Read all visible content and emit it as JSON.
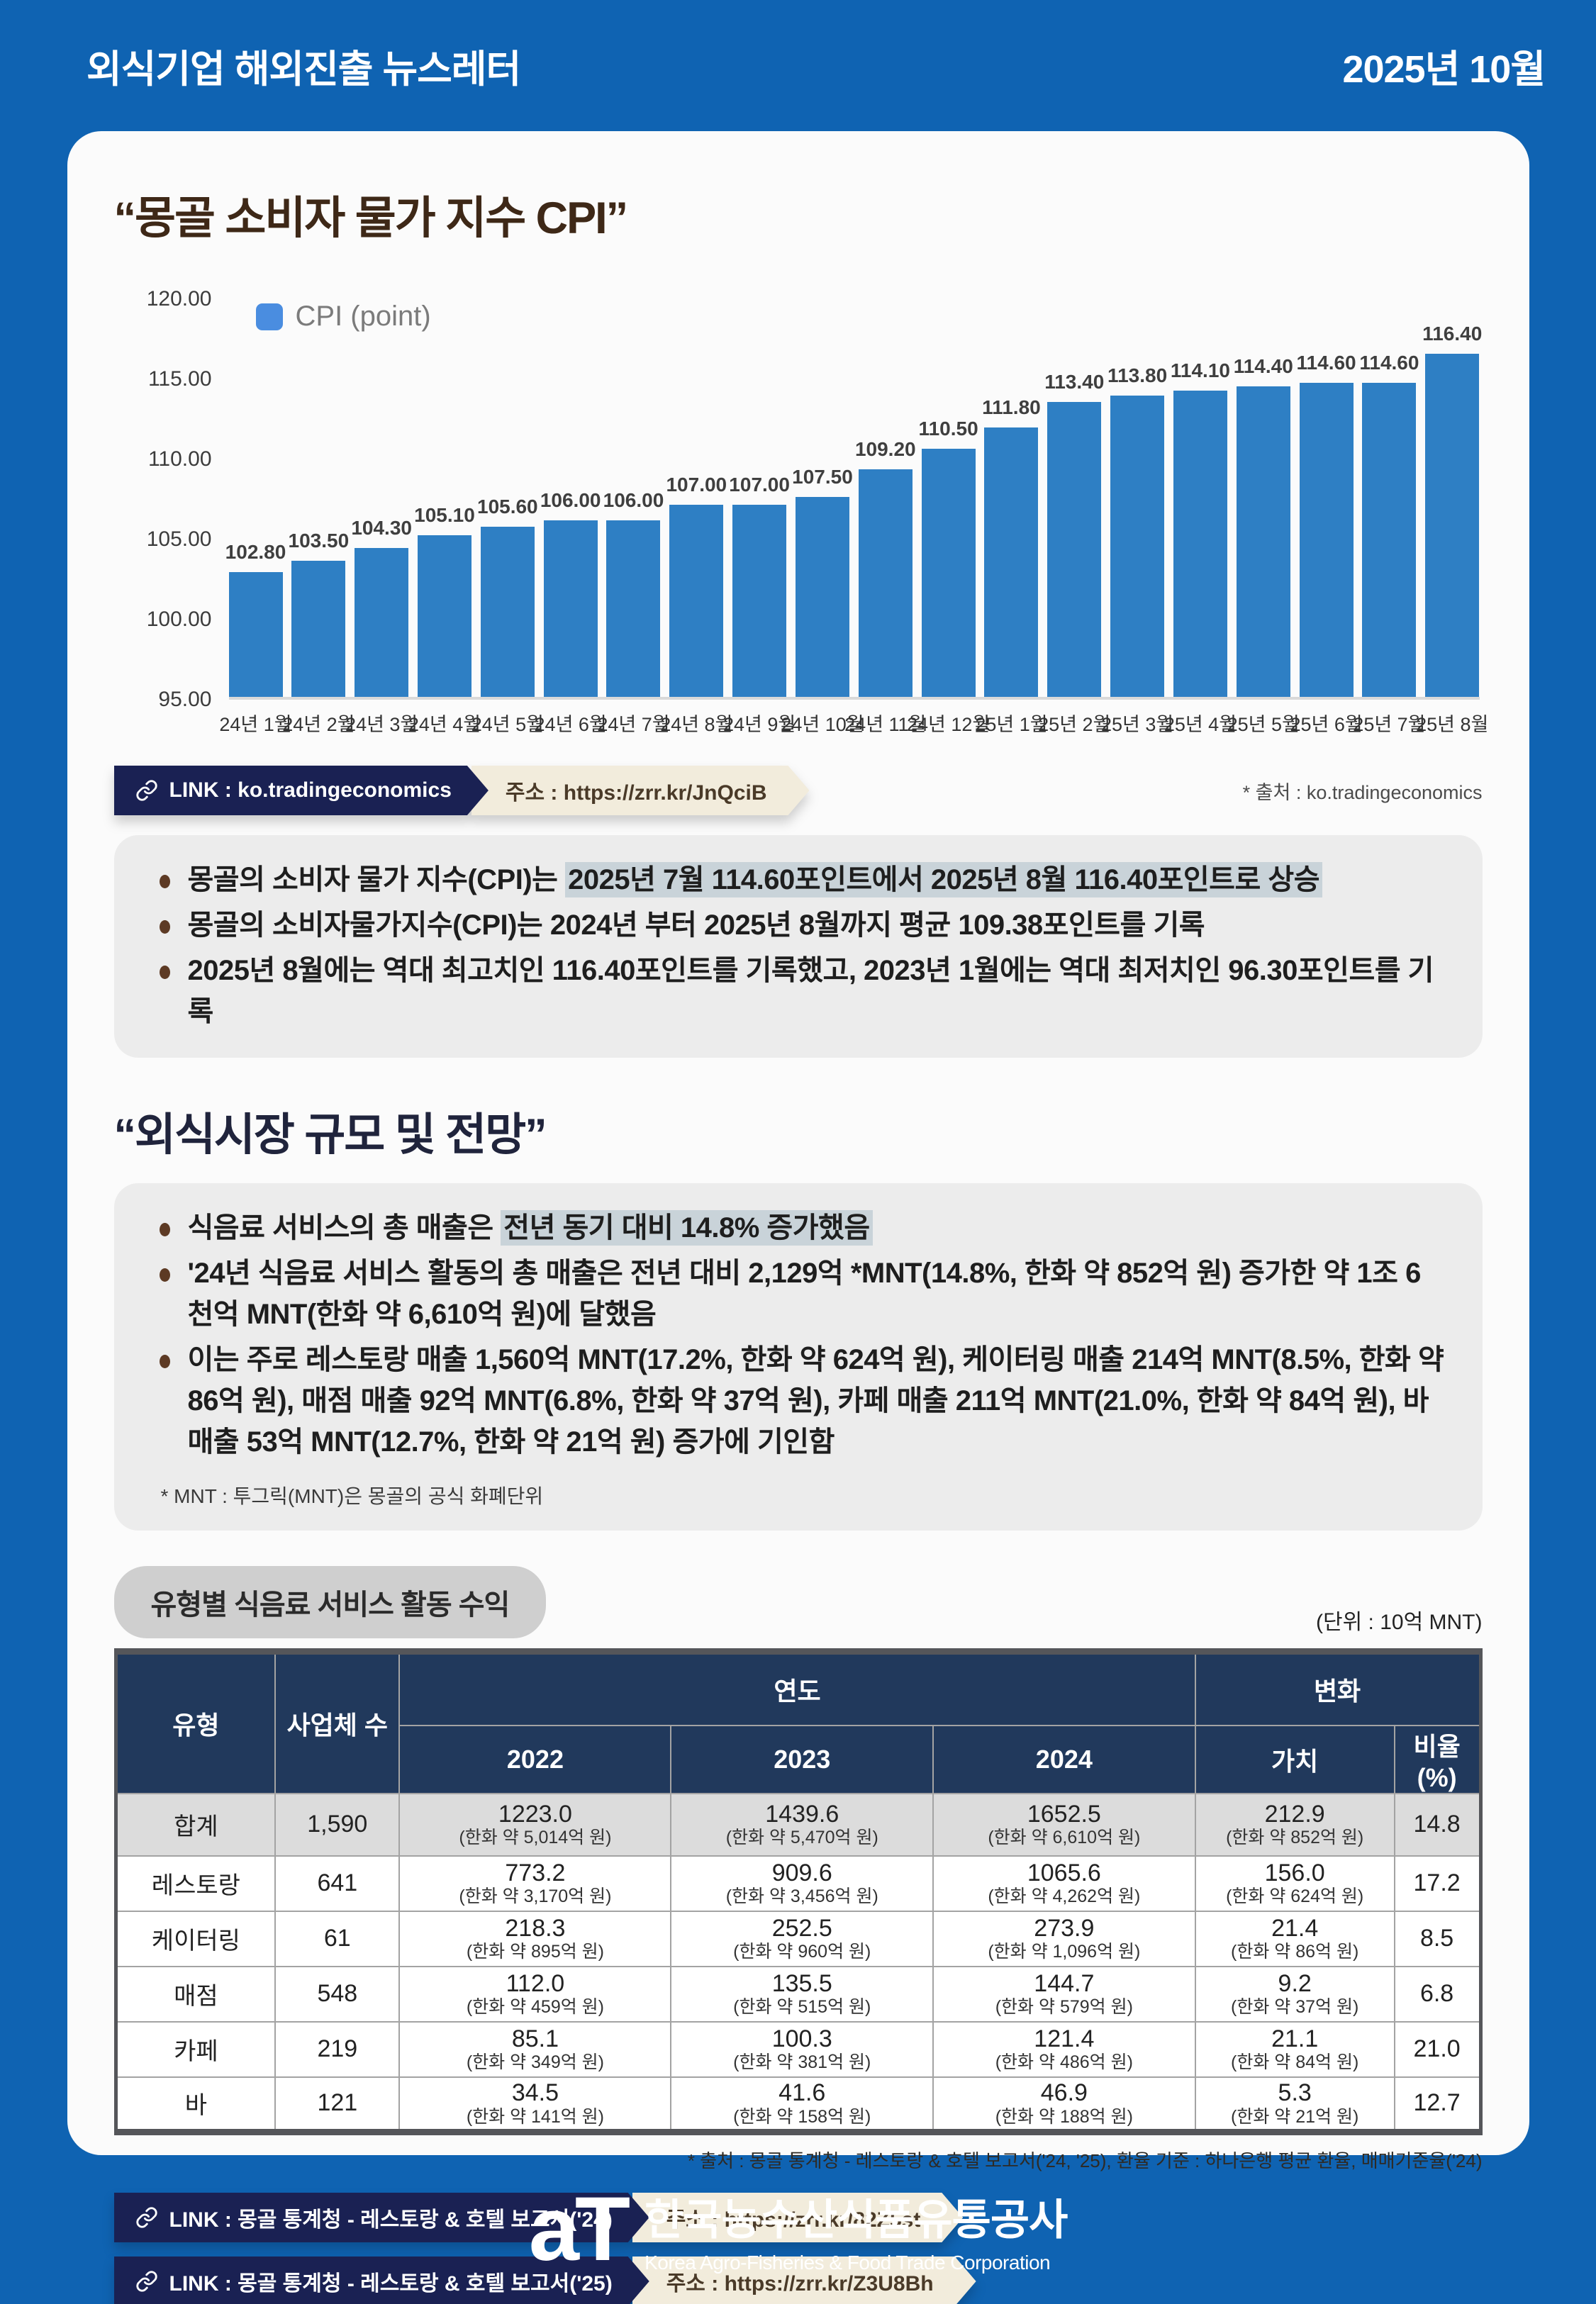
{
  "header": {
    "title": "외식기업 해외진출 뉴스레터",
    "date": "2025년 10월"
  },
  "section1": {
    "title": "“몽골 소비자 물가 지수 CPI”"
  },
  "chart_data": {
    "type": "bar",
    "title": "몽골 소비자 물가 지수 CPI",
    "legend": "CPI (point)",
    "categories": [
      "24년 1월",
      "24년 2월",
      "24년 3월",
      "24년 4월",
      "24년 5월",
      "24년 6월",
      "24년 7월",
      "24년 8월",
      "24년 9월",
      "24년 10월",
      "24년 11월",
      "24년 12월",
      "25년 1월",
      "25년 2월",
      "25년 3월",
      "25년 4월",
      "25년 5월",
      "25년 6월",
      "25년 7월",
      "25년 8월"
    ],
    "values": [
      102.8,
      103.5,
      104.3,
      105.1,
      105.6,
      106.0,
      106.0,
      107.0,
      107.0,
      107.5,
      109.2,
      110.5,
      111.8,
      113.4,
      113.8,
      114.1,
      114.4,
      114.6,
      114.6,
      116.4
    ],
    "ylim": [
      95,
      120
    ],
    "yticks": [
      95.0,
      100.0,
      105.0,
      110.0,
      115.0,
      120.0
    ],
    "xlabel": "",
    "ylabel": "",
    "grid": false,
    "legend_position": "top-left",
    "bar_color": "#2e7fc4"
  },
  "chart_link": {
    "label": "LINK : ko.tradingeconomics",
    "url": "주소 : https://zrr.kr/JnQciB"
  },
  "chart_source": "* 출처 : ko.tradingeconomics",
  "bullets1": [
    {
      "segments": [
        {
          "text": "몽골의 소비자 물가 지수(CPI)는 "
        },
        {
          "text": "2025년 7월 114.60포인트에서 2025년 8월 116.40포인트로 상승",
          "highlight": true
        }
      ]
    },
    {
      "segments": [
        {
          "text": "몽골의 소비자물가지수(CPI)는 2024년 부터 2025년 8월까지 평균 109.38포인트를 기록"
        }
      ]
    },
    {
      "segments": [
        {
          "text": "2025년 8월에는 역대 최고치인 116.40포인트를 기록했고, 2023년 1월에는 역대 최저치인 96.30포인트를 기록"
        }
      ]
    }
  ],
  "section2": {
    "title": "“외식시장 규모 및 전망”"
  },
  "bullets2": [
    {
      "segments": [
        {
          "text": "식음료 서비스의 총 매출은 "
        },
        {
          "text": "전년 동기 대비 14.8% 증가했음",
          "highlight": true
        }
      ]
    },
    {
      "segments": [
        {
          "text": "'24년 식음료 서비스 활동의 총 매출은 전년 대비 2,129억 *MNT(14.8%, 한화 약 852억 원) 증가한 약 1조 6천억 MNT(한화 약 6,610억 원)에 달했음"
        }
      ]
    },
    {
      "segments": [
        {
          "text": "이는 주로 레스토랑 매출 1,560억 MNT(17.2%, 한화 약 624억 원), 케이터링 매출 214억 MNT(8.5%, 한화 약 86억 원), 매점 매출 92억 MNT(6.8%, 한화 약 37억 원), 카페 매출 211억 MNT(21.0%, 한화 약 84억 원), 바 매출 53억 MNT(12.7%, 한화 약 21억 원) 증가에 기인함"
        }
      ]
    }
  ],
  "bullets2_footnote": "* MNT : 투그릭(MNT)은 몽골의 공식 화폐단위",
  "table": {
    "badge": "유형별 식음료 서비스 활동 수익",
    "unit": "(단위 : 10억 MNT)",
    "col_type": "유형",
    "col_count": "사업체 수",
    "col_year": "연도",
    "col_change": "변화",
    "col_years": [
      "2022",
      "2023",
      "2024"
    ],
    "col_value": "가치",
    "col_ratio": "비율(%)",
    "rows": [
      {
        "total": true,
        "type": "합계",
        "count": "1,590",
        "y2022": {
          "v": "1223.0",
          "sub": "(한화 약 5,014억 원)"
        },
        "y2023": {
          "v": "1439.6",
          "sub": "(한화 약 5,470억 원)"
        },
        "y2024": {
          "v": "1652.5",
          "sub": "(한화 약 6,610억 원)"
        },
        "change": {
          "v": "212.9",
          "sub": "(한화 약 852억 원)"
        },
        "ratio": "14.8"
      },
      {
        "type": "레스토랑",
        "count": "641",
        "y2022": {
          "v": "773.2",
          "sub": "(한화 약 3,170억 원)"
        },
        "y2023": {
          "v": "909.6",
          "sub": "(한화 약 3,456억 원)"
        },
        "y2024": {
          "v": "1065.6",
          "sub": "(한화 약 4,262억 원)"
        },
        "change": {
          "v": "156.0",
          "sub": "(한화 약 624억 원)"
        },
        "ratio": "17.2"
      },
      {
        "type": "케이터링",
        "count": "61",
        "y2022": {
          "v": "218.3",
          "sub": "(한화 약 895억 원)"
        },
        "y2023": {
          "v": "252.5",
          "sub": "(한화 약 960억 원)"
        },
        "y2024": {
          "v": "273.9",
          "sub": "(한화 약 1,096억 원)"
        },
        "change": {
          "v": "21.4",
          "sub": "(한화 약 86억 원)"
        },
        "ratio": "8.5"
      },
      {
        "type": "매점",
        "count": "548",
        "y2022": {
          "v": "112.0",
          "sub": "(한화 약 459억 원)"
        },
        "y2023": {
          "v": "135.5",
          "sub": "(한화 약 515억 원)"
        },
        "y2024": {
          "v": "144.7",
          "sub": "(한화 약 579억 원)"
        },
        "change": {
          "v": "9.2",
          "sub": "(한화 약 37억 원)"
        },
        "ratio": "6.8"
      },
      {
        "type": "카페",
        "count": "219",
        "y2022": {
          "v": "85.1",
          "sub": "(한화 약 349억 원)"
        },
        "y2023": {
          "v": "100.3",
          "sub": "(한화 약 381억 원)"
        },
        "y2024": {
          "v": "121.4",
          "sub": "(한화 약 486억 원)"
        },
        "change": {
          "v": "21.1",
          "sub": "(한화 약 84억 원)"
        },
        "ratio": "21.0"
      },
      {
        "type": "바",
        "count": "121",
        "y2022": {
          "v": "34.5",
          "sub": "(한화 약 141억 원)"
        },
        "y2023": {
          "v": "41.6",
          "sub": "(한화 약 158억 원)"
        },
        "y2024": {
          "v": "46.9",
          "sub": "(한화 약 188억 원)"
        },
        "change": {
          "v": "5.3",
          "sub": "(한화 약 21억 원)"
        },
        "ratio": "12.7"
      }
    ],
    "source": "* 출처 : 몽골 통계청 - 레스토랑 & 호텔 보고서('24, '25), 환율 기준 : 하나은행 평균 환율, 매매기준율('24)"
  },
  "table_links": [
    {
      "label": "LINK : 몽골 통계청 - 레스토랑 & 호텔 보고서('24)",
      "url": "주소 : https://zrr.kr/82Z5st"
    },
    {
      "label": "LINK : 몽골 통계청 - 레스토랑 & 호텔 보고서('25)",
      "url": "주소 : https://zrr.kr/Z3U8Bh"
    }
  ],
  "footer": {
    "logo": "aT",
    "name_kr": "한국농수산식품유통공사",
    "name_en": "Korea Agro-Fisheries & Food Trade Corporation"
  },
  "colors": {
    "background": "#0f63b2",
    "bar": "#2e7fc4",
    "table_header": "#21395c",
    "link_navy": "#1a2153",
    "link_cream": "#f2ecdc",
    "highlight": "#c9d3d9",
    "title_brown": "#3e2817",
    "title_navy": "#20243c"
  }
}
